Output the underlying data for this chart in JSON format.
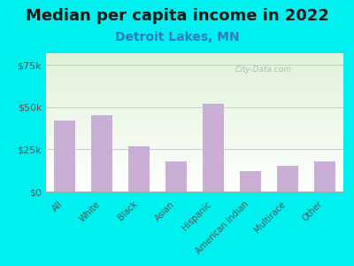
{
  "title": "Median per capita income in 2022",
  "subtitle": "Detroit Lakes, MN",
  "categories": [
    "All",
    "White",
    "Black",
    "Asian",
    "Hispanic",
    "American Indian",
    "Multirace",
    "Other"
  ],
  "values": [
    42000,
    45000,
    27000,
    18000,
    52000,
    12000,
    15000,
    18000
  ],
  "bar_color": "#c9aed6",
  "title_fontsize": 13,
  "subtitle_fontsize": 10,
  "subtitle_color": "#2e7bbf",
  "background_color": "#00f0f0",
  "ytick_labels": [
    "$0",
    "$25k",
    "$50k",
    "$75k"
  ],
  "ytick_values": [
    0,
    25000,
    50000,
    75000
  ],
  "ylim": [
    0,
    82000
  ],
  "watermark": "City-Data.com"
}
